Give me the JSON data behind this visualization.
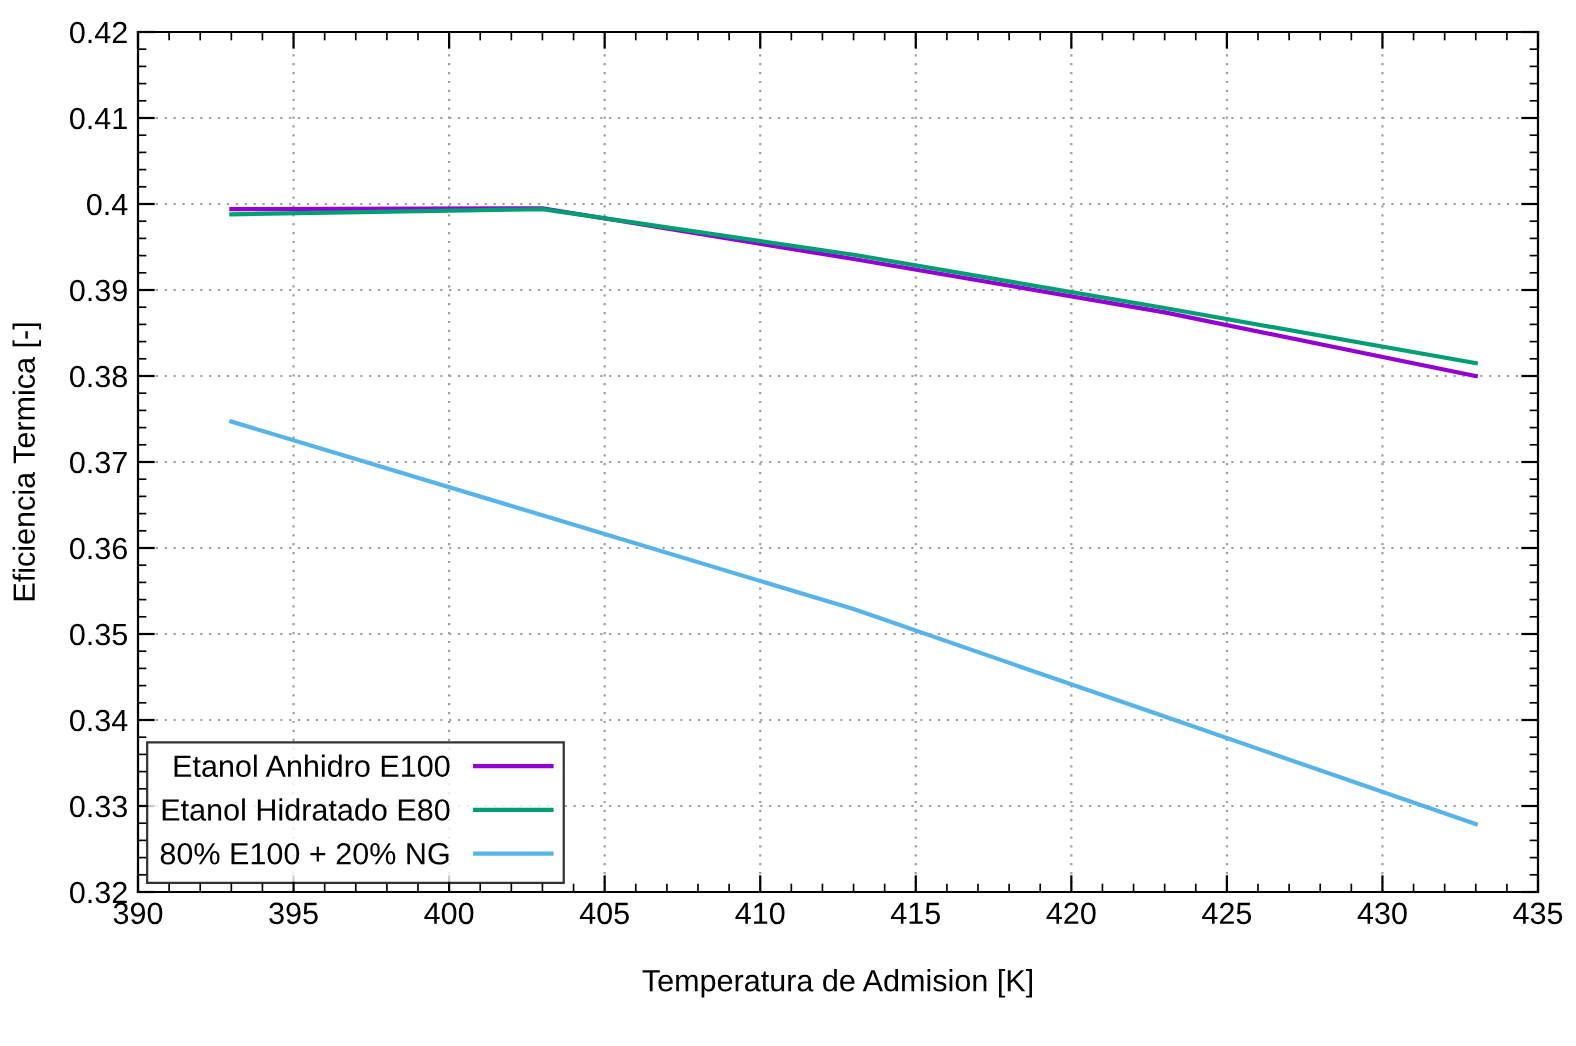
{
  "chart_data": {
    "type": "line",
    "xlabel": "Temperatura de Admision [K]",
    "ylabel": "Eficiencia Termica [-]",
    "x": [
      393,
      403,
      413,
      423,
      433
    ],
    "series": [
      {
        "name": "Etanol Anhidro E100",
        "color": "#9400d3",
        "values": [
          0.3994,
          0.3995,
          0.3936,
          0.3874,
          0.38
        ]
      },
      {
        "name": "Etanol Hidratado E80",
        "color": "#009e73",
        "values": [
          0.3988,
          0.3994,
          0.3941,
          0.3879,
          0.3815
        ]
      },
      {
        "name": "80% E100 + 20% NG",
        "color": "#56b4e9",
        "values": [
          0.3747,
          0.3638,
          0.3529,
          0.3404,
          0.3279
        ]
      }
    ],
    "xlim": [
      390,
      435
    ],
    "xticks": [
      390,
      395,
      400,
      405,
      410,
      415,
      420,
      425,
      430,
      435
    ],
    "ylim": [
      0.32,
      0.42
    ],
    "yticks": [
      0.32,
      0.33,
      0.34,
      0.35,
      0.36,
      0.37,
      0.38,
      0.39,
      {
        "value": 0.4,
        "label": "0.4"
      },
      0.41,
      0.42
    ],
    "grid": true,
    "legend": "bottom left",
    "marker": "none",
    "line_style": "solid"
  }
}
